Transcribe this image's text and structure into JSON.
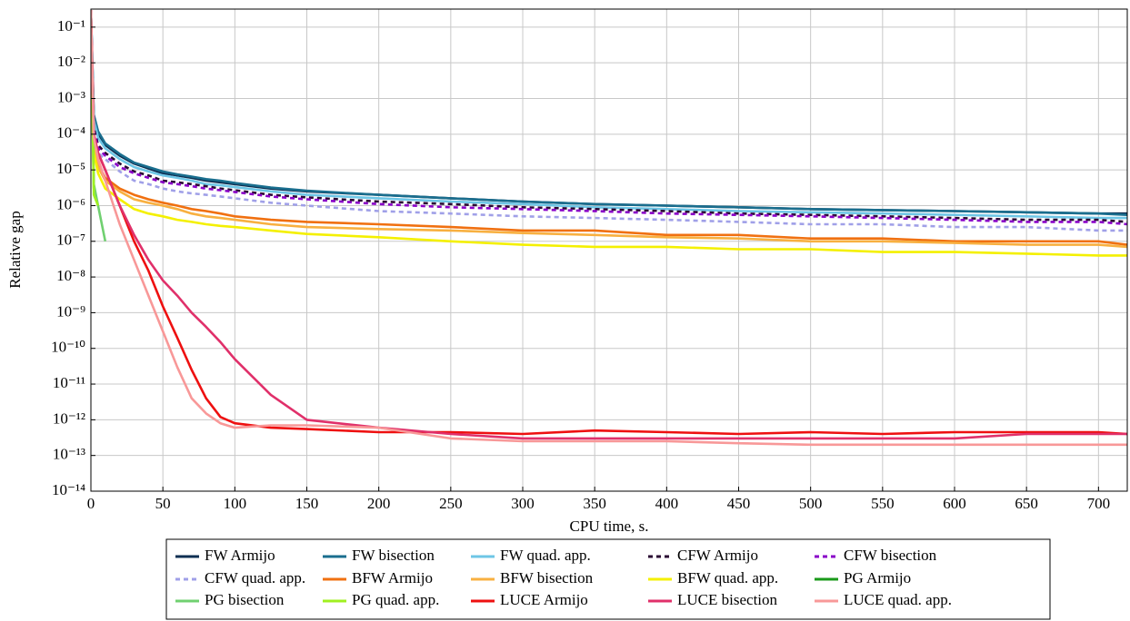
{
  "chart_data": {
    "type": "line",
    "xlabel": "CPU time, s.",
    "ylabel": "Relative gap",
    "log_y": true,
    "grid": true,
    "legend": "bottom",
    "x": [
      0,
      2,
      5,
      10,
      20,
      30,
      40,
      50,
      60,
      70,
      80,
      90,
      100,
      125,
      150,
      200,
      250,
      300,
      350,
      400,
      450,
      500,
      550,
      600,
      650,
      700,
      720
    ],
    "xlim": [
      0,
      720
    ],
    "xticks": [
      0,
      50,
      100,
      150,
      200,
      250,
      300,
      350,
      400,
      450,
      500,
      550,
      600,
      650,
      700
    ],
    "ylim": [
      1e-14,
      0.32
    ],
    "yticks": [
      {
        "value": 1e-14,
        "label": "10⁻¹⁴"
      },
      {
        "value": 1e-13,
        "label": "10⁻¹³"
      },
      {
        "value": 1e-12,
        "label": "10⁻¹²"
      },
      {
        "value": 1e-11,
        "label": "10⁻¹¹"
      },
      {
        "value": 1e-10,
        "label": "10⁻¹⁰"
      },
      {
        "value": 1e-09,
        "label": "10⁻⁹"
      },
      {
        "value": 1e-08,
        "label": "10⁻⁸"
      },
      {
        "value": 1e-07,
        "label": "10⁻⁷"
      },
      {
        "value": 1e-06,
        "label": "10⁻⁶"
      },
      {
        "value": 1e-05,
        "label": "10⁻⁵"
      },
      {
        "value": 0.0001,
        "label": "10⁻⁴"
      },
      {
        "value": 0.001,
        "label": "10⁻³"
      },
      {
        "value": 0.01,
        "label": "10⁻²"
      },
      {
        "value": 0.1,
        "label": "10⁻¹"
      }
    ],
    "series": [
      {
        "name": "FW Armijo",
        "color": "#0d2f52",
        "dashed": false,
        "values": [
          0.3,
          0.0003,
          0.0001,
          5e-05,
          2.5e-05,
          1.5e-05,
          1.1e-05,
          8e-06,
          7e-06,
          6e-06,
          5e-06,
          4.5e-06,
          4e-06,
          3e-06,
          2.5e-06,
          2e-06,
          1.6e-06,
          1.3e-06,
          1.1e-06,
          1e-06,
          9e-07,
          8e-07,
          7.5e-07,
          7e-07,
          6.5e-07,
          6e-07,
          6e-07
        ]
      },
      {
        "name": "FW bisection",
        "color": "#1a6e8e",
        "dashed": false,
        "values": [
          0.3,
          0.00035,
          0.00012,
          5.5e-05,
          2.8e-05,
          1.6e-05,
          1.2e-05,
          9e-06,
          7.5e-06,
          6.5e-06,
          5.5e-06,
          5e-06,
          4.3e-06,
          3.2e-06,
          2.6e-06,
          2e-06,
          1.6e-06,
          1.3e-06,
          1.1e-06,
          1e-06,
          9e-07,
          8e-07,
          7.5e-07,
          7e-07,
          6.5e-07,
          6e-07,
          5.5e-07
        ]
      },
      {
        "name": "FW quad. app.",
        "color": "#6ec6e6",
        "dashed": false,
        "values": [
          0.3,
          0.00025,
          8e-05,
          4e-05,
          2e-05,
          1.2e-05,
          9e-06,
          7e-06,
          6e-06,
          5e-06,
          4e-06,
          3.7e-06,
          3.3e-06,
          2.5e-06,
          2e-06,
          1.6e-06,
          1.3e-06,
          1.1e-06,
          9e-07,
          8e-07,
          7e-07,
          6.5e-07,
          6e-07,
          5.5e-07,
          5e-07,
          4.5e-07,
          4.5e-07
        ]
      },
      {
        "name": "CFW Armijo",
        "color": "#2a0a33",
        "dashed": true,
        "values": [
          0.2,
          0.00015,
          5e-05,
          3e-05,
          1.5e-05,
          9e-06,
          7e-06,
          5e-06,
          4.5e-06,
          4e-06,
          3.5e-06,
          3e-06,
          2.7e-06,
          2e-06,
          1.7e-06,
          1.3e-06,
          1.1e-06,
          9e-07,
          8e-07,
          7e-07,
          6e-07,
          5.5e-07,
          5e-07,
          4.5e-07,
          4e-07,
          4e-07,
          3.5e-07
        ]
      },
      {
        "name": "CFW bisection",
        "color": "#8a00c8",
        "dashed": true,
        "values": [
          0.2,
          0.00012,
          4e-05,
          2.5e-05,
          1.2e-05,
          8e-06,
          6e-06,
          4.5e-06,
          4e-06,
          3.5e-06,
          3e-06,
          2.7e-06,
          2.4e-06,
          1.8e-06,
          1.5e-06,
          1.1e-06,
          9e-07,
          8e-07,
          7e-07,
          6e-07,
          5.5e-07,
          5e-07,
          4.5e-07,
          4e-07,
          3.5e-07,
          3.5e-07,
          3e-07
        ]
      },
      {
        "name": "CFW quad. app.",
        "color": "#a0a0e8",
        "dashed": true,
        "values": [
          0.2,
          0.0001,
          3e-05,
          2e-05,
          9e-06,
          5e-06,
          4e-06,
          3e-06,
          2.5e-06,
          2.2e-06,
          2e-06,
          1.8e-06,
          1.6e-06,
          1.2e-06,
          1e-06,
          7e-07,
          6e-07,
          5e-07,
          4.5e-07,
          4e-07,
          3.5e-07,
          3e-07,
          3e-07,
          2.5e-07,
          2.5e-07,
          2e-07,
          2e-07
        ]
      },
      {
        "name": "BFW Armijo",
        "color": "#f07010",
        "dashed": false,
        "values": [
          0.2,
          5e-05,
          1.5e-05,
          6e-06,
          3e-06,
          2e-06,
          1.5e-06,
          1.2e-06,
          1e-06,
          8e-07,
          7e-07,
          6e-07,
          5e-07,
          4e-07,
          3.5e-07,
          3e-07,
          2.5e-07,
          2e-07,
          2e-07,
          1.5e-07,
          1.5e-07,
          1.2e-07,
          1.2e-07,
          1e-07,
          1e-07,
          1e-07,
          8e-08
        ]
      },
      {
        "name": "BFW bisection",
        "color": "#f8b040",
        "dashed": false,
        "values": [
          0.2,
          4e-05,
          1.2e-05,
          5e-06,
          2.5e-06,
          1.5e-06,
          1.2e-06,
          1e-06,
          8e-07,
          6e-07,
          5e-07,
          4.5e-07,
          4e-07,
          3e-07,
          2.5e-07,
          2.2e-07,
          2e-07,
          1.7e-07,
          1.5e-07,
          1.3e-07,
          1.2e-07,
          1e-07,
          1e-07,
          9e-08,
          8e-08,
          8e-08,
          7e-08
        ]
      },
      {
        "name": "BFW quad. app.",
        "color": "#f4f000",
        "dashed": false,
        "values": [
          0.2,
          3e-05,
          8e-06,
          3e-06,
          1.5e-06,
          8e-07,
          6e-07,
          5e-07,
          4e-07,
          3.5e-07,
          3e-07,
          2.7e-07,
          2.5e-07,
          2e-07,
          1.6e-07,
          1.3e-07,
          1e-07,
          8e-08,
          7e-08,
          7e-08,
          6e-08,
          6e-08,
          5e-08,
          5e-08,
          4.5e-08,
          4e-08,
          4e-08
        ]
      },
      {
        "name": "PG Armijo",
        "color": "#1a9a1a",
        "dashed": false,
        "values": [
          0.2,
          3e-06,
          null,
          null,
          null,
          null,
          null,
          null,
          null,
          null,
          null,
          null,
          null,
          null,
          null,
          null,
          null,
          null,
          null,
          null,
          null,
          null,
          null,
          null,
          null,
          null,
          null
        ]
      },
      {
        "name": "PG bisection",
        "color": "#70d070",
        "dashed": false,
        "values": [
          0.2,
          4e-06,
          1e-06,
          1e-07,
          null,
          null,
          null,
          null,
          null,
          null,
          null,
          null,
          null,
          null,
          null,
          null,
          null,
          null,
          null,
          null,
          null,
          null,
          null,
          null,
          null,
          null,
          null
        ]
      },
      {
        "name": "PG quad. app.",
        "color": "#a0f020",
        "dashed": false,
        "values": [
          0.2,
          2e-06,
          1e-06,
          null,
          null,
          null,
          null,
          null,
          null,
          null,
          null,
          null,
          null,
          null,
          null,
          null,
          null,
          null,
          null,
          null,
          null,
          null,
          null,
          null,
          null,
          null,
          null
        ]
      },
      {
        "name": "LUCE Armijo",
        "color": "#ee1010",
        "dashed": false,
        "values": [
          0.3,
          0.0001,
          3e-05,
          1e-05,
          1e-06,
          1e-07,
          1.5e-08,
          1.5e-09,
          2e-10,
          2.5e-11,
          4e-12,
          1.2e-12,
          8e-13,
          6e-13,
          5.5e-13,
          4.5e-13,
          4.5e-13,
          4e-13,
          5e-13,
          4.5e-13,
          4e-13,
          4.5e-13,
          4e-13,
          4.5e-13,
          4.5e-13,
          4.5e-13,
          4e-13
        ]
      },
      {
        "name": "LUCE bisection",
        "color": "#e0306a",
        "dashed": false,
        "values": [
          0.3,
          0.0001,
          3e-05,
          1e-05,
          1e-06,
          1.5e-07,
          3e-08,
          8e-09,
          3e-09,
          1e-09,
          4e-10,
          1.5e-10,
          5e-11,
          5e-12,
          1e-12,
          6e-13,
          4e-13,
          3e-13,
          3e-13,
          3e-13,
          3e-13,
          3e-13,
          3e-13,
          3e-13,
          4e-13,
          4e-13,
          4e-13
        ]
      },
      {
        "name": "LUCE quad. app.",
        "color": "#f89898",
        "dashed": false,
        "values": [
          0.3,
          8e-05,
          2e-05,
          5e-06,
          3e-07,
          3e-08,
          3e-09,
          3e-10,
          3e-11,
          4e-12,
          1.5e-12,
          8e-13,
          6e-13,
          7e-13,
          7e-13,
          6e-13,
          3e-13,
          2.5e-13,
          2.5e-13,
          2.5e-13,
          2.2e-13,
          2e-13,
          2e-13,
          2e-13,
          2e-13,
          2e-13,
          2e-13
        ]
      }
    ]
  }
}
